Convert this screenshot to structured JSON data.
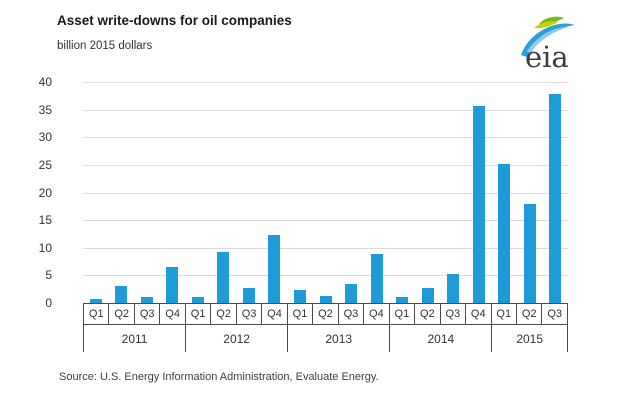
{
  "header": {
    "title": "Asset write-downs for oil companies",
    "subtitle": "billion 2015 dollars",
    "logo_text": "eia"
  },
  "source": "Source:  U.S. Energy Information Administration, Evaluate Energy.",
  "colors": {
    "bar": "#1e9cd8",
    "gridline": "#dcdcdc",
    "axis": "#4a4a4a",
    "text": "#333333",
    "logo_green": "#76b82a",
    "logo_yellow": "#c8d400",
    "logo_blue": "#2b9fd8",
    "logo_light_blue": "#8ccbe9"
  },
  "chart_data": {
    "type": "bar",
    "title": "Asset write-downs for oil companies",
    "ylabel": "billion 2015 dollars",
    "xlabel": "",
    "ylim": [
      0,
      40
    ],
    "yticks": [
      0,
      5,
      10,
      15,
      20,
      25,
      30,
      35,
      40
    ],
    "grid": true,
    "legend": "none",
    "years": [
      {
        "year": "2011",
        "quarters": [
          "Q1",
          "Q2",
          "Q3",
          "Q4"
        ],
        "values": [
          0.7,
          3.0,
          1.1,
          6.6
        ]
      },
      {
        "year": "2012",
        "quarters": [
          "Q1",
          "Q2",
          "Q3",
          "Q4"
        ],
        "values": [
          1.1,
          9.3,
          2.7,
          12.4
        ]
      },
      {
        "year": "2013",
        "quarters": [
          "Q1",
          "Q2",
          "Q3",
          "Q4"
        ],
        "values": [
          2.3,
          1.2,
          3.4,
          8.9
        ]
      },
      {
        "year": "2014",
        "quarters": [
          "Q1",
          "Q2",
          "Q3",
          "Q4"
        ],
        "values": [
          1.1,
          2.7,
          5.3,
          35.6
        ]
      },
      {
        "year": "2015",
        "quarters": [
          "Q1",
          "Q2",
          "Q3"
        ],
        "values": [
          25.2,
          17.9,
          37.9
        ]
      }
    ]
  }
}
